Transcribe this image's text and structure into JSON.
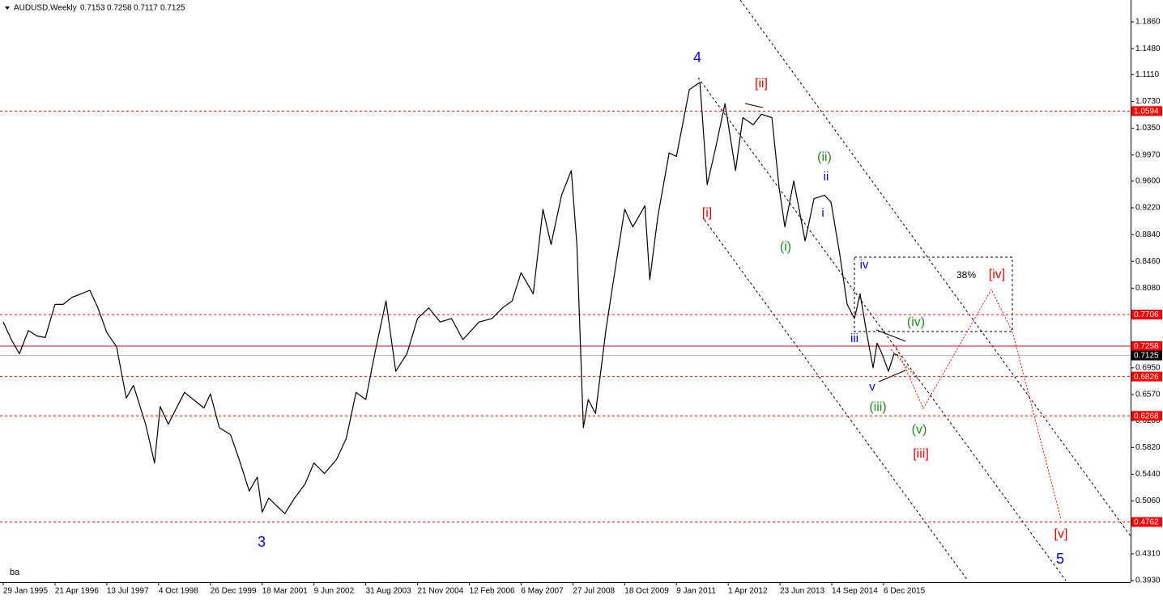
{
  "chart_data": {
    "type": "line",
    "symbol": "AUDUSD,Weekly",
    "ohlc": [
      0.7153,
      0.7258,
      0.7117,
      0.7125
    ],
    "x": [
      "1995-01-29",
      "1995-04-09",
      "1995-06-18",
      "1995-09-03",
      "1995-11-19",
      "1996-01-28",
      "1996-04-21",
      "1996-06-30",
      "1996-09-15",
      "1996-12-01",
      "1997-02-16",
      "1997-04-27",
      "1997-07-13",
      "1997-10-05",
      "1997-12-28",
      "1998-03-01",
      "1998-06-14",
      "1998-08-30",
      "1998-10-18",
      "1998-12-27",
      "1999-03-14",
      "1999-05-16",
      "1999-08-01",
      "1999-10-31",
      "1999-12-26",
      "2000-03-12",
      "2000-06-18",
      "2000-09-10",
      "2000-11-26",
      "2001-02-04",
      "2001-03-18",
      "2001-05-13",
      "2001-09-30",
      "2001-12-23",
      "2002-03-24",
      "2002-06-09",
      "2002-09-08",
      "2002-12-22",
      "2003-03-16",
      "2003-06-08",
      "2003-08-31",
      "2003-11-23",
      "2004-02-22",
      "2004-05-16",
      "2004-08-22",
      "2004-11-21",
      "2005-02-27",
      "2005-06-05",
      "2005-09-11",
      "2005-12-18",
      "2006-02-12",
      "2006-05-07",
      "2006-08-27",
      "2006-11-26",
      "2007-02-18",
      "2007-05-06",
      "2007-08-19",
      "2007-11-11",
      "2008-01-20",
      "2008-04-20",
      "2008-07-13",
      "2008-08-31",
      "2008-10-26",
      "2008-12-07",
      "2009-02-08",
      "2009-05-10",
      "2009-08-02",
      "2009-10-18",
      "2009-12-27",
      "2010-04-11",
      "2010-05-23",
      "2010-08-01",
      "2010-11-07",
      "2011-01-09",
      "2011-05-01",
      "2011-07-31",
      "2011-10-02",
      "2011-12-11",
      "2012-03-04",
      "2012-06-03",
      "2012-08-05",
      "2012-11-04",
      "2013-01-13",
      "2013-04-14",
      "2013-06-16",
      "2013-08-04",
      "2013-10-20",
      "2014-01-26",
      "2014-04-13",
      "2014-07-13",
      "2014-09-07",
      "2014-11-23",
      "2015-01-25",
      "2015-03-29",
      "2015-05-17",
      "2015-07-12",
      "2015-09-06",
      "2015-10-11",
      "2015-11-22",
      "2016-01-17",
      "2016-03-06",
      "2016-04-10"
    ],
    "color": "#000000",
    "values": [
      0.76,
      0.735,
      0.715,
      0.748,
      0.74,
      0.738,
      0.785,
      0.785,
      0.795,
      0.8,
      0.805,
      0.78,
      0.745,
      0.725,
      0.652,
      0.67,
      0.615,
      0.56,
      0.64,
      0.615,
      0.64,
      0.66,
      0.65,
      0.638,
      0.658,
      0.61,
      0.6,
      0.56,
      0.52,
      0.54,
      0.49,
      0.51,
      0.488,
      0.51,
      0.53,
      0.56,
      0.545,
      0.565,
      0.595,
      0.66,
      0.65,
      0.72,
      0.79,
      0.69,
      0.715,
      0.765,
      0.78,
      0.76,
      0.765,
      0.735,
      0.745,
      0.76,
      0.765,
      0.78,
      0.79,
      0.83,
      0.8,
      0.92,
      0.87,
      0.94,
      0.975,
      0.87,
      0.61,
      0.65,
      0.63,
      0.75,
      0.84,
      0.92,
      0.895,
      0.925,
      0.82,
      0.91,
      1.0,
      0.995,
      1.09,
      1.1,
      0.955,
      1.005,
      1.07,
      0.975,
      1.05,
      1.04,
      1.055,
      1.05,
      0.95,
      0.895,
      0.96,
      0.875,
      0.935,
      0.94,
      0.93,
      0.855,
      0.785,
      0.765,
      0.8,
      0.745,
      0.695,
      0.73,
      0.715,
      0.69,
      0.715,
      0.7125
    ],
    "xlim": [
      "1995-01-01",
      "2021-10-12"
    ],
    "xticks": [
      {
        "value": "1995-01-29",
        "label": "29 Jan 1995"
      },
      {
        "value": "1996-04-21",
        "label": "21 Apr 1996"
      },
      {
        "value": "1997-07-13",
        "label": "13 Jul 1997"
      },
      {
        "value": "1998-10-04",
        "label": "4 Oct 1998"
      },
      {
        "value": "1999-12-26",
        "label": "26 Dec 1999"
      },
      {
        "value": "2001-03-18",
        "label": "18 Mar 2001"
      },
      {
        "value": "2002-06-09",
        "label": "9 Jun 2002"
      },
      {
        "value": "2003-08-31",
        "label": "31 Aug 2003"
      },
      {
        "value": "2004-11-21",
        "label": "21 Nov 2004"
      },
      {
        "value": "2006-02-12",
        "label": "12 Feb 2006"
      },
      {
        "value": "2007-05-06",
        "label": "6 May 2007"
      },
      {
        "value": "2008-07-27",
        "label": "27 Jul 2008"
      },
      {
        "value": "2009-10-18",
        "label": "18 Oct 2009"
      },
      {
        "value": "2011-01-09",
        "label": "9 Jan 2011"
      },
      {
        "value": "2012-04-01",
        "label": "1 Apr 2012"
      },
      {
        "value": "2013-06-23",
        "label": "23 Jun 2013"
      },
      {
        "value": "2014-09-14",
        "label": "14 Sep 2014"
      },
      {
        "value": "2015-12-06",
        "label": "6 Dec 2015"
      }
    ],
    "ylim": [
      0.3907,
      1.217
    ],
    "yticks": [
      {
        "value": 1.186,
        "label": "1.1860"
      },
      {
        "value": 1.148,
        "label": "1.1480"
      },
      {
        "value": 1.111,
        "label": "1.1110"
      },
      {
        "value": 1.073,
        "label": "1.0730"
      },
      {
        "value": 1.035,
        "label": "1.0350"
      },
      {
        "value": 0.997,
        "label": "0.9970"
      },
      {
        "value": 0.96,
        "label": "0.9600"
      },
      {
        "value": 0.922,
        "label": "0.9220"
      },
      {
        "value": 0.884,
        "label": "0.8840"
      },
      {
        "value": 0.846,
        "label": "0.8460"
      },
      {
        "value": 0.808,
        "label": "0.8080"
      },
      {
        "value": 0.695,
        "label": "0.6950"
      },
      {
        "value": 0.657,
        "label": "0.6570"
      },
      {
        "value": 0.62,
        "label": "0.6200"
      },
      {
        "value": 0.582,
        "label": "0.5820"
      },
      {
        "value": 0.544,
        "label": "0.5440"
      },
      {
        "value": 0.506,
        "label": "0.5060"
      },
      {
        "value": 0.431,
        "label": "0.4310"
      },
      {
        "value": 0.393,
        "label": "0.3930"
      }
    ],
    "levels": [
      1.0594,
      0.7706,
      0.6826,
      0.6268,
      0.4762
    ],
    "level_color": "#ff0000",
    "ask_line": 0.7258,
    "bid_line": 0.7125,
    "annotations": [
      {
        "text": "4",
        "color": "#0000ff"
      },
      {
        "text": "3",
        "color": "#0000ff"
      },
      {
        "text": "5",
        "color": "#0000ff"
      },
      {
        "text": "[ii]",
        "color": "#ee0000"
      },
      {
        "text": "[i]",
        "color": "#ee0000"
      },
      {
        "text": "[iii]",
        "color": "#ee0000"
      },
      {
        "text": "[iv]",
        "color": "#ee0000"
      },
      {
        "text": "[v]",
        "color": "#ee0000"
      },
      {
        "text": "(ii)",
        "color": "#1e8c1e"
      },
      {
        "text": "(i)",
        "color": "#1e8c1e"
      },
      {
        "text": "(iii)",
        "color": "#1e8c1e"
      },
      {
        "text": "(iv)",
        "color": "#1e8c1e"
      },
      {
        "text": "(v)",
        "color": "#1e8c1e"
      },
      {
        "text": "ii",
        "color": "#0000ff"
      },
      {
        "text": "i",
        "color": "#0000ff"
      },
      {
        "text": "iv",
        "color": "#0000ff"
      },
      {
        "text": "iii",
        "color": "#0000ff"
      },
      {
        "text": "v",
        "color": "#0000ff"
      },
      {
        "text": "38%",
        "color": "#000000"
      },
      {
        "text": "ba",
        "color": "#000000"
      }
    ]
  }
}
